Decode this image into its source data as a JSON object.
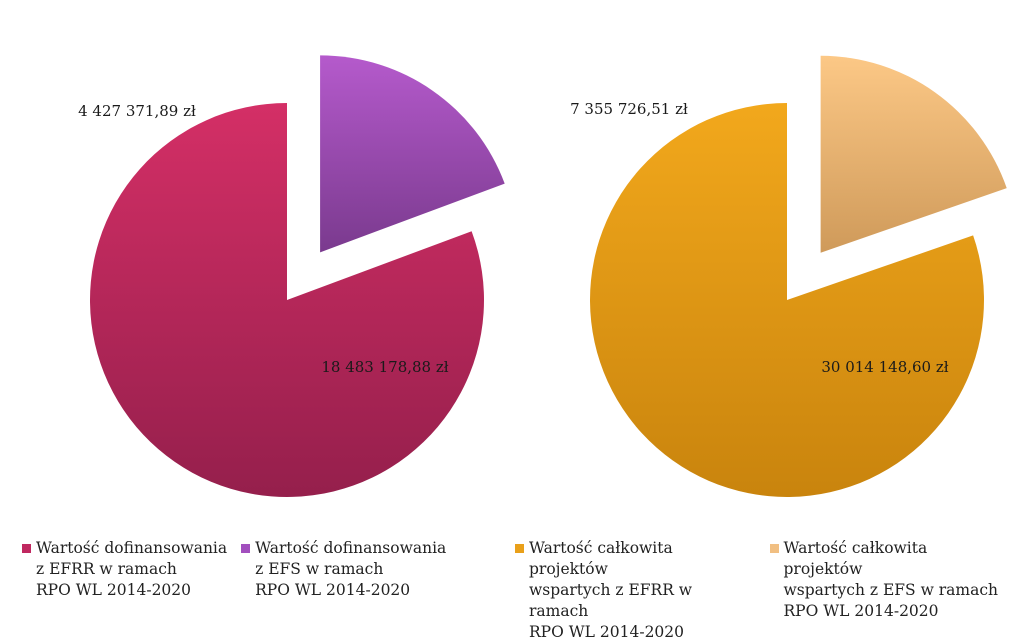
{
  "chart_data": [
    {
      "type": "pie",
      "slices": [
        {
          "label": "18 483 178,88 zł",
          "value": 18483178.88,
          "color": "#b8275a",
          "legend": "Wartość dofinansowania\nz EFRR w ramach\nRPO WL 2014-2020"
        },
        {
          "label": "4 427 371,89 zł",
          "value": 4427371.89,
          "color": "#9b4aaa",
          "legend": "Wartość dofinansowania\nz EFS w ramach\nRPO WL 2014-2020"
        }
      ]
    },
    {
      "type": "pie",
      "slices": [
        {
          "label": "30 014 148,60 zł",
          "value": 30014148.6,
          "color": "#e49a17",
          "legend": "Wartość całkowita projektów\nwspartych z EFRR w ramach\nRPO WL 2014-2020"
        },
        {
          "label": "7 355 726,51 zł",
          "value": 7355726.51,
          "color": "#e8b874",
          "legend": "Wartość całkowita projektów\nwspartych z EFS w ramach\nRPO WL 2014-2020"
        }
      ]
    }
  ]
}
